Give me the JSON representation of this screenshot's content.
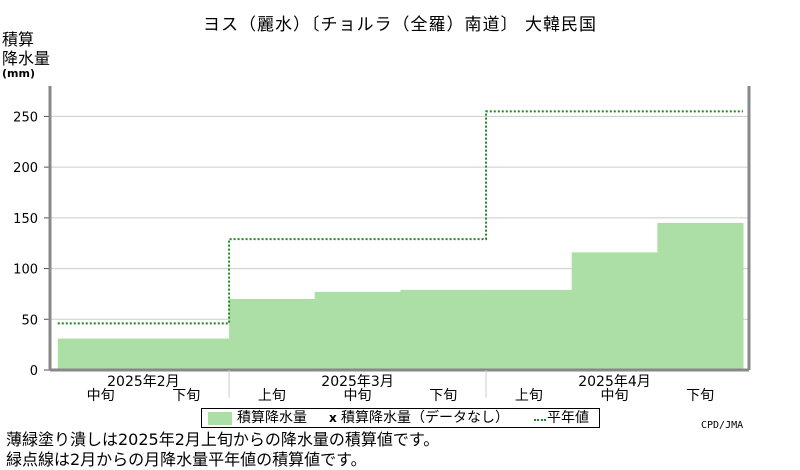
{
  "chart_data": {
    "type": "area",
    "title": "ヨス（麗水）〔チョルラ（全羅）南道〕 大韓民国",
    "ylabel_lines": [
      "積算",
      "降水量"
    ],
    "yunit": "(mm)",
    "ylim": [
      0,
      280
    ],
    "yticks": [
      0,
      50,
      100,
      150,
      200,
      250
    ],
    "grid": true,
    "periods": [
      {
        "month": "2025年2月",
        "dekad": "中旬"
      },
      {
        "month": "2025年2月",
        "dekad": "下旬"
      },
      {
        "month": "2025年3月",
        "dekad": "上旬"
      },
      {
        "month": "2025年3月",
        "dekad": "中旬"
      },
      {
        "month": "2025年3月",
        "dekad": "下旬"
      },
      {
        "month": "2025年4月",
        "dekad": "上旬"
      },
      {
        "month": "2025年4月",
        "dekad": "中旬"
      },
      {
        "month": "2025年4月",
        "dekad": "下旬"
      }
    ],
    "month_labels": [
      "2025年2月",
      "2025年3月",
      "2025年4月"
    ],
    "series": [
      {
        "name": "積算降水量",
        "style": "filled-step",
        "color": "#acdfa6",
        "values": [
          31,
          31,
          70,
          77,
          79,
          79,
          116,
          145
        ]
      },
      {
        "name": "平年値",
        "style": "dotted-step",
        "color": "#1a8a1a",
        "values": [
          46,
          46,
          129,
          129,
          129,
          255,
          255,
          255
        ]
      }
    ],
    "legend": {
      "position": "bottom",
      "items": [
        "積算降水量",
        "積算降水量（データなし）",
        "平年値"
      ],
      "missing_marker": "x"
    }
  },
  "credit": "CPD/JMA",
  "notes": [
    "薄緑塗り潰しは2025年2月上旬からの降水量の積算値です。",
    "緑点線は2月からの月降水量平年値の積算値です。"
  ]
}
